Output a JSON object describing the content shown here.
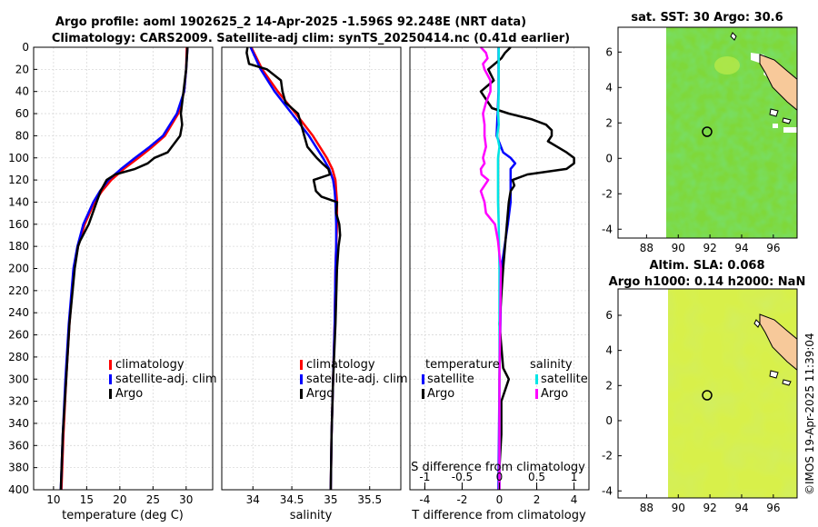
{
  "header": {
    "title_line1": "Argo profile: aoml 1902625_2 14-Apr-2025 -1.596S 92.248E (NRT data)",
    "title_line2": "Climatology: CARS2009. Satellite-adj clim: synTS_20250414.nc (0.41d earlier)"
  },
  "maps": {
    "sst_title": "sat. SST: 30 Argo: 30.6",
    "sla_title_line1": "Altim. SLA: 0.068",
    "sla_title_line2": "Argo h1000: 0.14 h2000: NaN",
    "xticks": [
      "88",
      "90",
      "92",
      "94",
      "96"
    ],
    "yticks_top": [
      "6",
      "4",
      "2",
      "0",
      "-2",
      "-4"
    ],
    "yticks_bottom": [
      "6",
      "4",
      "2",
      "0",
      "-2",
      "-4"
    ],
    "marker_lon": 92.248,
    "marker_lat": -1.596,
    "colors": {
      "ocean_warm": "#7fd83a",
      "ocean_dark": "#2fbf2a",
      "land": "#f7c99a",
      "sla_field": "#d8f04a"
    }
  },
  "copyright": "©IMOS 19-Apr-2025 11:39:04",
  "legends": {
    "temperature": [
      "climatology",
      "satellite-adj. clim",
      "Argo"
    ],
    "salinity": [
      "climatology",
      "satellite-adj. clim",
      "Argo"
    ],
    "diff_temperature_heading": "temperature",
    "diff_salinity_heading": "salinity",
    "diff_temperature_items": [
      "satellite",
      "Argo"
    ],
    "diff_salinity_items": [
      "satellite",
      "Argo"
    ]
  },
  "chart_data": [
    {
      "type": "line",
      "title": "",
      "xlabel": "temperature (deg C)",
      "ylabel": "",
      "xlim": [
        7,
        34
      ],
      "ylim": [
        400,
        0
      ],
      "xticks": [
        10,
        15,
        20,
        25,
        30
      ],
      "yticks": [
        0,
        20,
        40,
        60,
        80,
        100,
        120,
        140,
        160,
        180,
        200,
        220,
        240,
        260,
        280,
        300,
        320,
        340,
        360,
        380,
        400
      ],
      "grid": true,
      "legend_position": "bottom-right",
      "series": [
        {
          "name": "climatology",
          "color": "#ff0000",
          "depth": [
            0,
            20,
            40,
            60,
            80,
            90,
            100,
            110,
            120,
            130,
            140,
            160,
            180,
            200,
            250,
            300,
            350,
            400
          ],
          "values": [
            30.1,
            30.0,
            29.7,
            28.8,
            26.8,
            24.9,
            22.8,
            20.6,
            18.7,
            17.3,
            16.2,
            14.7,
            13.7,
            13.1,
            12.4,
            11.9,
            11.5,
            11.2
          ]
        },
        {
          "name": "satellite-adj. clim",
          "color": "#0000ff",
          "depth": [
            0,
            20,
            40,
            60,
            80,
            90,
            100,
            110,
            120,
            130,
            140,
            160,
            180,
            200,
            250,
            300,
            350,
            400
          ],
          "values": [
            30.2,
            30.0,
            29.7,
            28.6,
            26.5,
            24.5,
            22.3,
            20.2,
            18.3,
            17.0,
            16.0,
            14.5,
            13.6,
            13.0,
            12.3,
            11.8,
            11.4,
            11.1
          ]
        },
        {
          "name": "Argo",
          "color": "#000000",
          "depth": [
            0,
            20,
            40,
            60,
            70,
            80,
            95,
            100,
            105,
            110,
            115,
            120,
            130,
            140,
            160,
            175,
            180,
            200,
            250,
            300,
            350,
            400
          ],
          "values": [
            30.2,
            30.0,
            29.6,
            29.2,
            29.4,
            29.1,
            27.2,
            25.2,
            24.2,
            22.3,
            19.3,
            18.0,
            17.1,
            16.5,
            15.3,
            14.0,
            13.7,
            13.2,
            12.4,
            11.9,
            11.4,
            11.1
          ]
        }
      ]
    },
    {
      "type": "line",
      "title": "",
      "xlabel": "salinity",
      "ylabel": "",
      "xlim": [
        33.6,
        35.9
      ],
      "ylim": [
        400,
        0
      ],
      "xticks": [
        34,
        34.5,
        35,
        35.5
      ],
      "yticks": [
        0,
        20,
        40,
        60,
        80,
        100,
        120,
        140,
        160,
        180,
        200,
        220,
        240,
        260,
        280,
        300,
        320,
        340,
        360,
        380,
        400
      ],
      "grid": true,
      "legend_position": "bottom-right",
      "series": [
        {
          "name": "climatology",
          "color": "#ff0000",
          "depth": [
            0,
            20,
            40,
            60,
            80,
            100,
            110,
            120,
            130,
            140,
            160,
            180,
            200,
            250,
            300,
            350,
            400
          ],
          "values": [
            33.98,
            34.12,
            34.32,
            34.55,
            34.77,
            34.95,
            35.02,
            35.06,
            35.07,
            35.08,
            35.08,
            35.07,
            35.06,
            35.05,
            35.03,
            35.01,
            35.0
          ]
        },
        {
          "name": "satellite-adj. clim",
          "color": "#0000ff",
          "depth": [
            0,
            20,
            40,
            60,
            80,
            100,
            110,
            120,
            130,
            140,
            160,
            180,
            200,
            250,
            300,
            350,
            400
          ],
          "values": [
            33.97,
            34.1,
            34.28,
            34.5,
            34.72,
            34.9,
            34.98,
            35.03,
            35.05,
            35.06,
            35.07,
            35.07,
            35.06,
            35.05,
            35.03,
            35.01,
            35.0
          ]
        },
        {
          "name": "Argo",
          "color": "#000000",
          "depth": [
            0,
            5,
            15,
            20,
            30,
            40,
            50,
            60,
            70,
            80,
            90,
            100,
            105,
            110,
            115,
            120,
            130,
            135,
            140,
            150,
            160,
            170,
            180,
            200,
            250,
            300,
            350,
            400
          ],
          "values": [
            33.93,
            33.92,
            33.95,
            34.18,
            34.36,
            34.38,
            34.42,
            34.58,
            34.62,
            34.66,
            34.7,
            34.82,
            34.89,
            34.97,
            34.99,
            34.78,
            34.81,
            34.88,
            35.08,
            35.07,
            35.11,
            35.12,
            35.1,
            35.08,
            35.06,
            35.03,
            35.01,
            35.0
          ]
        }
      ]
    },
    {
      "type": "line",
      "title": "",
      "xlabel": "T difference from climatology",
      "x2label": "S difference from climatology",
      "ylabel": "",
      "xlim": [
        -4.8,
        4.8
      ],
      "x2lim": [
        -1.2,
        1.2
      ],
      "ylim": [
        400,
        0
      ],
      "xticks": [
        -4,
        -2,
        0,
        2,
        4
      ],
      "x2ticks": [
        -1,
        -0.5,
        0,
        0.5,
        1
      ],
      "x2ticklabels": [
        "-1",
        "-0.5",
        "0",
        "0.5",
        "1"
      ],
      "yticks": [
        0,
        20,
        40,
        60,
        80,
        100,
        120,
        140,
        160,
        180,
        200,
        220,
        240,
        260,
        280,
        300,
        320,
        340,
        360,
        380,
        400
      ],
      "grid": true,
      "legend_position": "bottom",
      "series": [
        {
          "name": "temperature satellite",
          "axis": "T",
          "color": "#0000ff",
          "depth": [
            0,
            40,
            80,
            95,
            100,
            105,
            110,
            120,
            140,
            160,
            200,
            300,
            400
          ],
          "values": [
            -0.05,
            -0.05,
            -0.15,
            0.2,
            0.6,
            0.85,
            0.6,
            0.6,
            0.6,
            0.45,
            0.1,
            0.0,
            -0.05
          ]
        },
        {
          "name": "temperature Argo",
          "axis": "T",
          "color": "#000000",
          "depth": [
            0,
            5,
            10,
            20,
            30,
            40,
            55,
            60,
            65,
            70,
            75,
            80,
            85,
            90,
            95,
            100,
            105,
            110,
            115,
            120,
            125,
            130,
            140,
            160,
            200,
            250,
            290,
            300,
            320,
            350,
            380,
            400
          ],
          "values": [
            0.6,
            0.3,
            0.1,
            -0.6,
            -0.3,
            -1.0,
            -0.4,
            0.5,
            1.7,
            2.5,
            2.8,
            2.8,
            2.6,
            3.1,
            3.6,
            4.0,
            4.0,
            3.6,
            1.5,
            0.7,
            0.8,
            0.6,
            0.5,
            0.4,
            0.2,
            0.0,
            0.2,
            0.5,
            0.1,
            0.1,
            0.0,
            0.0
          ]
        },
        {
          "name": "salinity satellite",
          "axis": "S",
          "color": "#00e5e5",
          "depth": [
            0,
            40,
            60,
            70,
            80,
            90,
            100,
            120,
            140,
            160,
            200,
            300,
            400
          ],
          "values": [
            -0.01,
            -0.01,
            -0.02,
            -0.01,
            -0.03,
            0.0,
            -0.02,
            -0.02,
            -0.02,
            -0.01,
            0.0,
            0.0,
            0.0
          ]
        },
        {
          "name": "salinity Argo",
          "axis": "S",
          "color": "#ff00ff",
          "depth": [
            0,
            5,
            10,
            15,
            20,
            30,
            40,
            50,
            60,
            70,
            80,
            90,
            100,
            105,
            110,
            115,
            120,
            130,
            140,
            150,
            160,
            175,
            200,
            300,
            400
          ],
          "values": [
            -0.25,
            -0.18,
            -0.16,
            -0.22,
            -0.2,
            -0.12,
            -0.12,
            -0.18,
            -0.22,
            -0.2,
            -0.2,
            -0.18,
            -0.22,
            -0.2,
            -0.25,
            -0.24,
            -0.15,
            -0.25,
            -0.2,
            -0.18,
            -0.06,
            -0.02,
            0.02,
            0.0,
            0.0
          ]
        }
      ]
    }
  ]
}
